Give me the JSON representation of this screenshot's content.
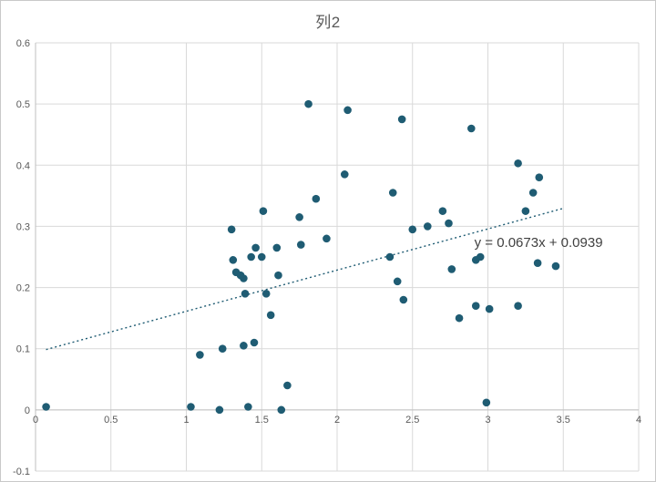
{
  "chart_data": {
    "type": "scatter",
    "title": "列2",
    "x_range": [
      0,
      4
    ],
    "y_range": [
      -0.1,
      0.6
    ],
    "x_tick_step": 0.5,
    "y_tick_step": 0.1,
    "x_tick_labels": [
      "0",
      "0.5",
      "1",
      "1.5",
      "2",
      "2.5",
      "3",
      "3.5",
      "4"
    ],
    "y_tick_labels": [
      "-0.1",
      "0",
      "0.1",
      "0.2",
      "0.3",
      "0.4",
      "0.5",
      "0.6"
    ],
    "grid": true,
    "legend": "none",
    "colors": {
      "point": "#1F5C73",
      "trendline": "#1F5C73",
      "grid": "#D9D9D9",
      "axis": "#BFBFBF",
      "tick_text": "#595959",
      "title_text": "#595959",
      "equation_text": "#404040"
    },
    "points": [
      [
        0.07,
        0.005
      ],
      [
        1.03,
        0.005
      ],
      [
        1.09,
        0.09
      ],
      [
        1.22,
        0.0
      ],
      [
        1.24,
        0.1
      ],
      [
        1.3,
        0.295
      ],
      [
        1.31,
        0.245
      ],
      [
        1.33,
        0.225
      ],
      [
        1.36,
        0.22
      ],
      [
        1.38,
        0.215
      ],
      [
        1.39,
        0.19
      ],
      [
        1.38,
        0.105
      ],
      [
        1.45,
        0.11
      ],
      [
        1.41,
        0.005
      ],
      [
        1.43,
        0.25
      ],
      [
        1.46,
        0.265
      ],
      [
        1.51,
        0.325
      ],
      [
        1.5,
        0.25
      ],
      [
        1.53,
        0.19
      ],
      [
        1.56,
        0.155
      ],
      [
        1.6,
        0.265
      ],
      [
        1.61,
        0.22
      ],
      [
        1.63,
        0.0
      ],
      [
        1.67,
        0.04
      ],
      [
        1.75,
        0.315
      ],
      [
        1.76,
        0.27
      ],
      [
        1.81,
        0.5
      ],
      [
        1.86,
        0.345
      ],
      [
        1.93,
        0.28
      ],
      [
        2.05,
        0.385
      ],
      [
        2.07,
        0.49
      ],
      [
        2.35,
        0.25
      ],
      [
        2.37,
        0.355
      ],
      [
        2.4,
        0.21
      ],
      [
        2.43,
        0.475
      ],
      [
        2.44,
        0.18
      ],
      [
        2.5,
        0.295
      ],
      [
        2.6,
        0.3
      ],
      [
        2.7,
        0.325
      ],
      [
        2.74,
        0.305
      ],
      [
        2.76,
        0.23
      ],
      [
        2.81,
        0.15
      ],
      [
        2.89,
        0.46
      ],
      [
        2.92,
        0.245
      ],
      [
        2.95,
        0.25
      ],
      [
        2.92,
        0.17
      ],
      [
        3.01,
        0.165
      ],
      [
        2.99,
        0.012
      ],
      [
        3.2,
        0.403
      ],
      [
        3.2,
        0.17
      ],
      [
        3.25,
        0.325
      ],
      [
        3.3,
        0.355
      ],
      [
        3.34,
        0.38
      ],
      [
        3.33,
        0.24
      ],
      [
        3.45,
        0.235
      ]
    ],
    "trendline": {
      "slope": 0.0673,
      "intercept": 0.0939,
      "x_start": 0.07,
      "x_end": 3.5,
      "style": "dotted",
      "equation": "y = 0.0673x + 0.0939",
      "label_anchor": [
        2.91,
        0.27
      ]
    }
  }
}
